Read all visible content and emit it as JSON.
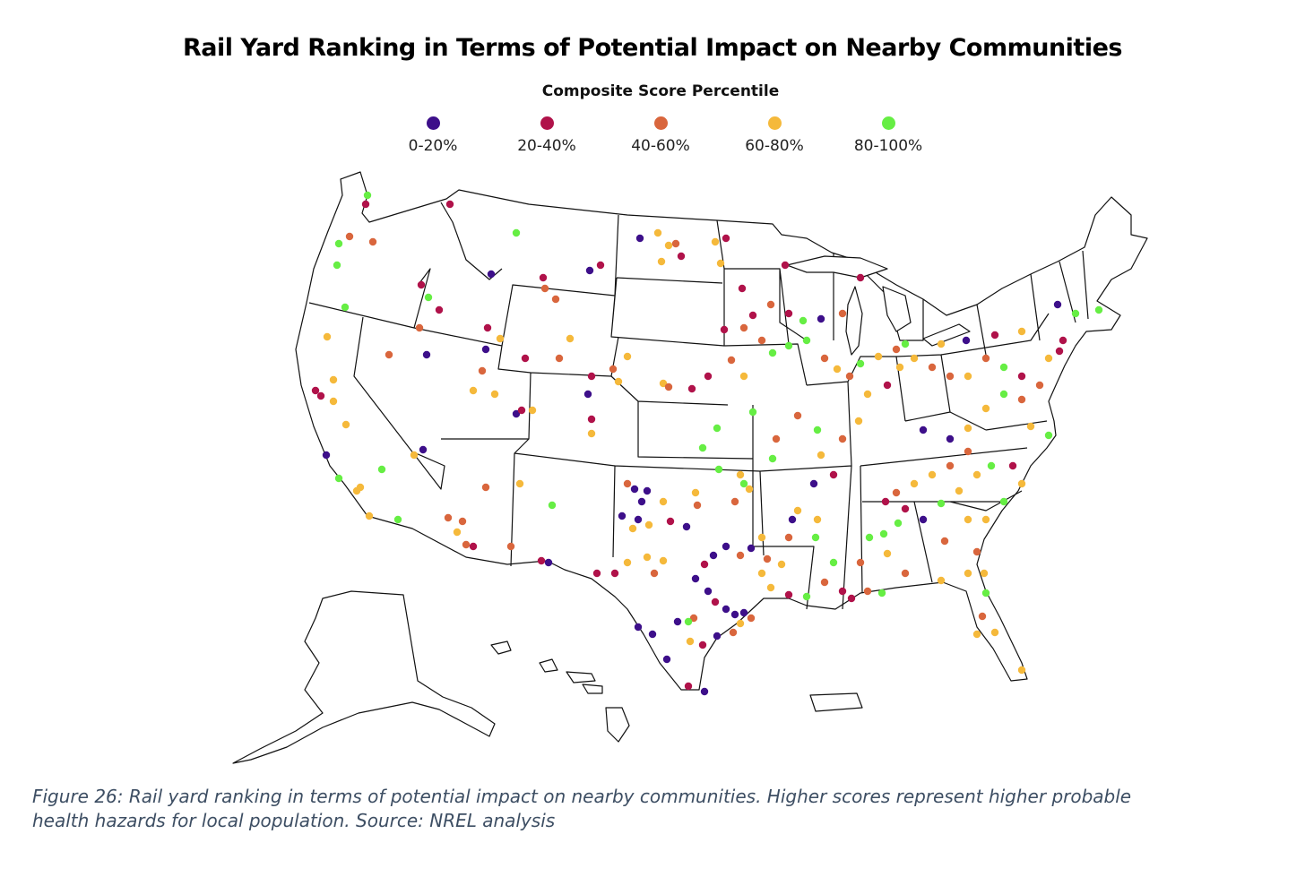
{
  "title": "Rail Yard Ranking in Terms of Potential Impact on Nearby Communities",
  "legend": {
    "title": "Composite Score Percentile",
    "items": [
      {
        "label": "0-20%",
        "color": "#3d0f8a"
      },
      {
        "label": "20-40%",
        "color": "#b0124a"
      },
      {
        "label": "40-60%",
        "color": "#d9663d"
      },
      {
        "label": "60-80%",
        "color": "#f5b93b"
      },
      {
        "label": "80-100%",
        "color": "#66ee44"
      }
    ]
  },
  "caption": {
    "line1": "Figure 26: Rail yard ranking in terms of potential impact on nearby communities. Higher scores represent higher probable",
    "line2": "health hazards for local population. Source: NREL analysis"
  },
  "map_data": {
    "region": "United States",
    "basemap": "state outlines, white fill, black borders",
    "point_groups": [
      {
        "bin": "0-20%",
        "color": "#3d0f8a"
      },
      {
        "bin": "20-40%",
        "color": "#b0124a"
      },
      {
        "bin": "40-60%",
        "color": "#d9663d"
      },
      {
        "bin": "60-80%",
        "color": "#f5b93b"
      },
      {
        "bin": "80-100%",
        "color": "#66ee44"
      }
    ]
  }
}
